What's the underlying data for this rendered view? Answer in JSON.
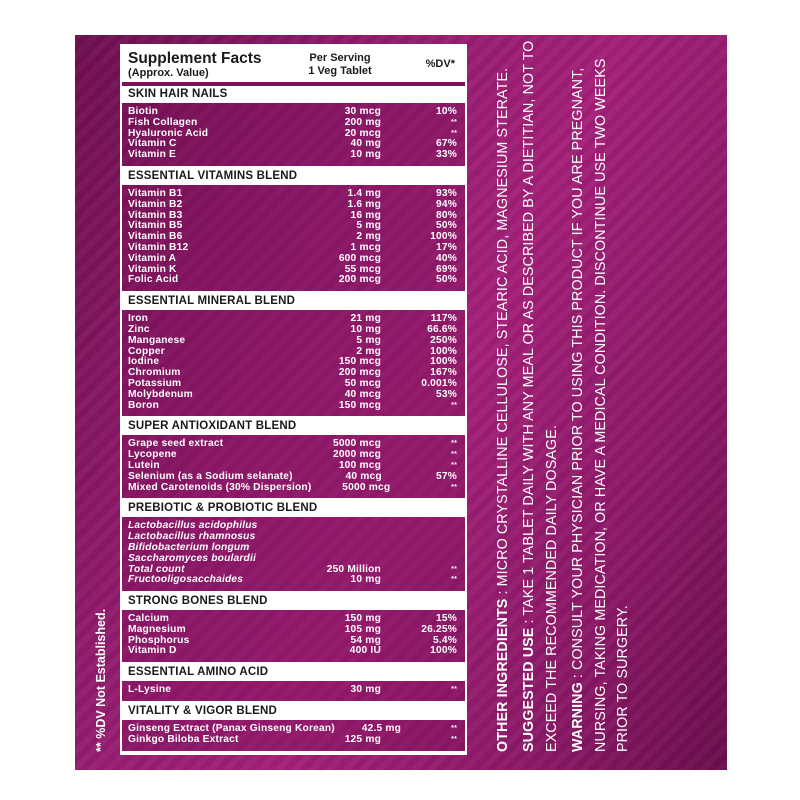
{
  "colors": {
    "panel": "#951c70",
    "header_bg": "#ffffff",
    "text_light": "#ffffff",
    "text_dark": "#1a1a1a"
  },
  "facts": {
    "title": "Supplement Facts",
    "subtitle": "(Approx. Value)",
    "per_serving": "Per Serving",
    "serving_size": "1 Veg Tablet",
    "dv_header": "%DV*",
    "sections": [
      {
        "title": "SKIN HAIR NAILS",
        "rows": [
          {
            "name": "Biotin",
            "amount": "30 mcg",
            "dv": "10%"
          },
          {
            "name": "Fish Collagen",
            "amount": "200 mg",
            "dv": "**"
          },
          {
            "name": "Hyaluronic Acid",
            "amount": "20 mcg",
            "dv": "**"
          },
          {
            "name": "Vitamin C",
            "amount": "40 mg",
            "dv": "67%"
          },
          {
            "name": "Vitamin E",
            "amount": "10 mg",
            "dv": "33%"
          }
        ]
      },
      {
        "title": "ESSENTIAL VITAMINS BLEND",
        "rows": [
          {
            "name": "Vitamin B1",
            "amount": "1.4 mg",
            "dv": "93%"
          },
          {
            "name": "Vitamin B2",
            "amount": "1.6 mg",
            "dv": "94%"
          },
          {
            "name": "Vitamin B3",
            "amount": "16 mg",
            "dv": "80%"
          },
          {
            "name": "Vitamin B5",
            "amount": "5 mg",
            "dv": "50%"
          },
          {
            "name": "Vitamin B6",
            "amount": "2 mg",
            "dv": "100%"
          },
          {
            "name": "Vitamin B12",
            "amount": "1 mcg",
            "dv": "17%"
          },
          {
            "name": "Vitamin A",
            "amount": "600 mcg",
            "dv": "40%"
          },
          {
            "name": "Vitamin K",
            "amount": "55 mcg",
            "dv": "69%"
          },
          {
            "name": "Folic Acid",
            "amount": "200 mcg",
            "dv": "50%"
          }
        ]
      },
      {
        "title": "ESSENTIAL MINERAL BLEND",
        "rows": [
          {
            "name": "Iron",
            "amount": "21 mg",
            "dv": "117%"
          },
          {
            "name": "Zinc",
            "amount": "10 mg",
            "dv": "66.6%"
          },
          {
            "name": "Manganese",
            "amount": "5 mg",
            "dv": "250%"
          },
          {
            "name": "Copper",
            "amount": "2 mg",
            "dv": "100%"
          },
          {
            "name": "Iodine",
            "amount": "150 mcg",
            "dv": "100%"
          },
          {
            "name": "Chromium",
            "amount": "200 mcg",
            "dv": "167%"
          },
          {
            "name": "Potassium",
            "amount": "50 mcg",
            "dv": "0.001%"
          },
          {
            "name": "Molybdenum",
            "amount": "40 mcg",
            "dv": "53%"
          },
          {
            "name": "Boron",
            "amount": "150 mcg",
            "dv": "**"
          }
        ]
      },
      {
        "title": "SUPER ANTIOXIDANT BLEND",
        "rows": [
          {
            "name": "Grape seed extract",
            "amount": "5000 mcg",
            "dv": "**"
          },
          {
            "name": "Lycopene",
            "amount": "2000 mcg",
            "dv": "**"
          },
          {
            "name": "Lutein",
            "amount": "100 mcg",
            "dv": "**"
          },
          {
            "name": "Selenium (as a Sodium selanate)",
            "amount": "40 mcg",
            "dv": "57%"
          },
          {
            "name": "Mixed Carotenoids (30% Dispersion)",
            "amount": "5000 mcg",
            "dv": "**"
          }
        ]
      },
      {
        "title": "PREBIOTIC & PROBIOTIC BLEND",
        "italic": true,
        "rows": [
          {
            "name": "Lactobacillus acidophilus",
            "amount": "",
            "dv": ""
          },
          {
            "name": "Lactobacillus rhamnosus",
            "amount": "",
            "dv": ""
          },
          {
            "name": "Bifidobacterium longum",
            "amount": "",
            "dv": ""
          },
          {
            "name": "Saccharomyces boulardii",
            "amount": "",
            "dv": ""
          },
          {
            "name": "Total count",
            "amount": "250 Million",
            "dv": "**"
          },
          {
            "name": "Fructooligosacchaides",
            "amount": "10 mg",
            "dv": "**"
          }
        ]
      },
      {
        "title": "STRONG BONES BLEND",
        "rows": [
          {
            "name": "Calcium",
            "amount": "150 mg",
            "dv": "15%"
          },
          {
            "name": "Magnesium",
            "amount": "105 mg",
            "dv": "26.25%"
          },
          {
            "name": "Phosphorus",
            "amount": "54 mg",
            "dv": "5.4%"
          },
          {
            "name": "Vitamin D",
            "amount": "400 IU",
            "dv": "100%"
          }
        ]
      },
      {
        "title": "ESSENTIAL AMINO ACID",
        "rows": [
          {
            "name": "L-Lysine",
            "amount": "30 mg",
            "dv": "**"
          }
        ]
      },
      {
        "title": "VITALITY & VIGOR BLEND",
        "rows": [
          {
            "name": "Ginseng Extract (Panax Ginseng Korean)",
            "amount": "42.5 mg",
            "dv": "**"
          },
          {
            "name": "Ginkgo Biloba Extract",
            "amount": "125 mg",
            "dv": "**"
          }
        ]
      }
    ]
  },
  "footnote": "** %DV Not Established.",
  "info": {
    "other_label": "OTHER INGREDIENTS",
    "other_text": " : MICRO CRYSTALLINE CELLULOSE, STEARIC ACID, MAGNESIUM STERATE.",
    "use_label": "SUGGESTED USE",
    "use_text": " : TAKE 1 TABLET DAILY WITH ANY MEAL OR AS DESCRIBED BY A DIETITIAN, NOT TO EXCEED THE RECOMMENDED DAILY DOSAGE.",
    "warning_label": "WARNING",
    "warning_text": " : CONSULT YOUR PHYSICIAN PRIOR TO USING THIS PRODUCT IF YOU ARE PREGNANT, NURSING, TAKING MEDICATION, OR HAVE A MEDICAL CONDITION. DISCONTINUE USE TWO WEEKS PRIOR TO SURGERY."
  }
}
